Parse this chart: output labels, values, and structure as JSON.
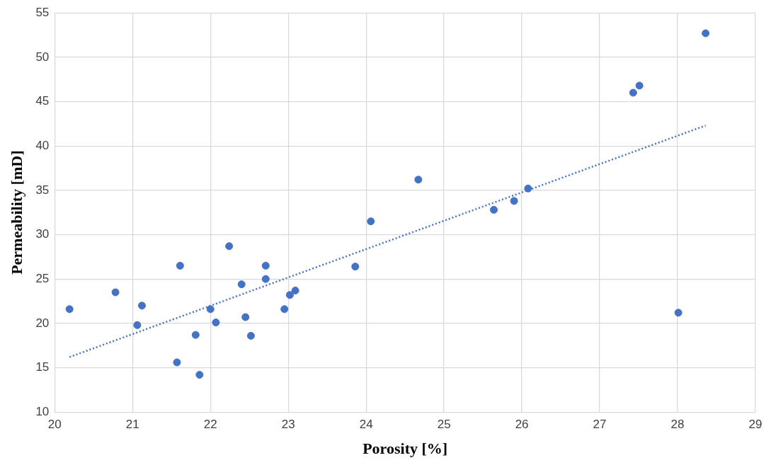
{
  "chart_data": {
    "type": "scatter",
    "xlabel": "Porosity [%]",
    "ylabel": "Permeability [mD]",
    "xlim": [
      20,
      29
    ],
    "xticks": [
      20,
      21,
      22,
      23,
      24,
      25,
      26,
      27,
      28,
      29
    ],
    "ylim": [
      10,
      55
    ],
    "yticks": [
      10,
      15,
      20,
      25,
      30,
      35,
      40,
      45,
      50,
      55
    ],
    "grid": true,
    "marker": "circle",
    "series": [
      {
        "type": "scatter",
        "color": "#4472c4",
        "x": [
          20.19,
          20.78,
          21.06,
          21.12,
          21.57,
          21.61,
          21.81,
          21.86,
          22.0,
          22.07,
          22.24,
          22.4,
          22.45,
          22.52,
          22.71,
          22.71,
          22.95,
          23.02,
          23.09,
          23.86,
          24.06,
          24.67,
          25.64,
          25.9,
          26.08,
          27.43,
          27.51,
          28.01,
          28.36
        ],
        "values": [
          21.6,
          23.5,
          19.8,
          22.0,
          15.6,
          26.5,
          18.7,
          14.2,
          21.6,
          20.1,
          28.7,
          24.4,
          20.7,
          18.6,
          26.5,
          25.0,
          21.6,
          23.2,
          23.7,
          26.4,
          31.5,
          36.2,
          32.8,
          33.8,
          35.2,
          46.0,
          46.8,
          21.2,
          52.7
        ]
      },
      {
        "type": "line",
        "color": "#4472c4",
        "line_style": "dotted",
        "marker": "none",
        "x": [
          20.19,
          28.36
        ],
        "values": [
          16.2,
          42.3
        ]
      }
    ]
  }
}
